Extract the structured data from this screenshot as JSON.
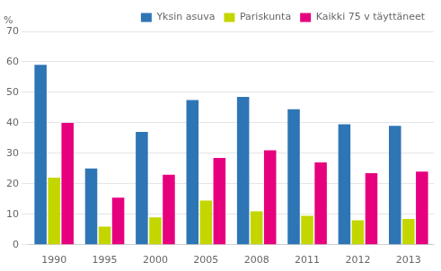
{
  "chart_data": {
    "type": "bar",
    "ylabel": "%",
    "categories": [
      "1990",
      "1995",
      "2000",
      "2005",
      "2008",
      "2011",
      "2012",
      "2013"
    ],
    "series": [
      {
        "name": "Yksin asuva",
        "color": "#2E75B6",
        "values": [
          59,
          25,
          37,
          47.5,
          48.5,
          44.5,
          39.5,
          39
        ]
      },
      {
        "name": "Pariskunta",
        "color": "#C4D600",
        "values": [
          22,
          6,
          9,
          14.5,
          11,
          9.5,
          8,
          8.5
        ]
      },
      {
        "name": "Kaikki 75 v täyttäneet",
        "color": "#E6007E",
        "values": [
          40,
          15.5,
          23,
          28.5,
          31,
          27,
          23.5,
          24
        ]
      }
    ],
    "ylim": [
      0,
      70
    ],
    "yticks": [
      0,
      10,
      20,
      30,
      40,
      50,
      60,
      70
    ],
    "grid": true,
    "legend": "upper right"
  }
}
